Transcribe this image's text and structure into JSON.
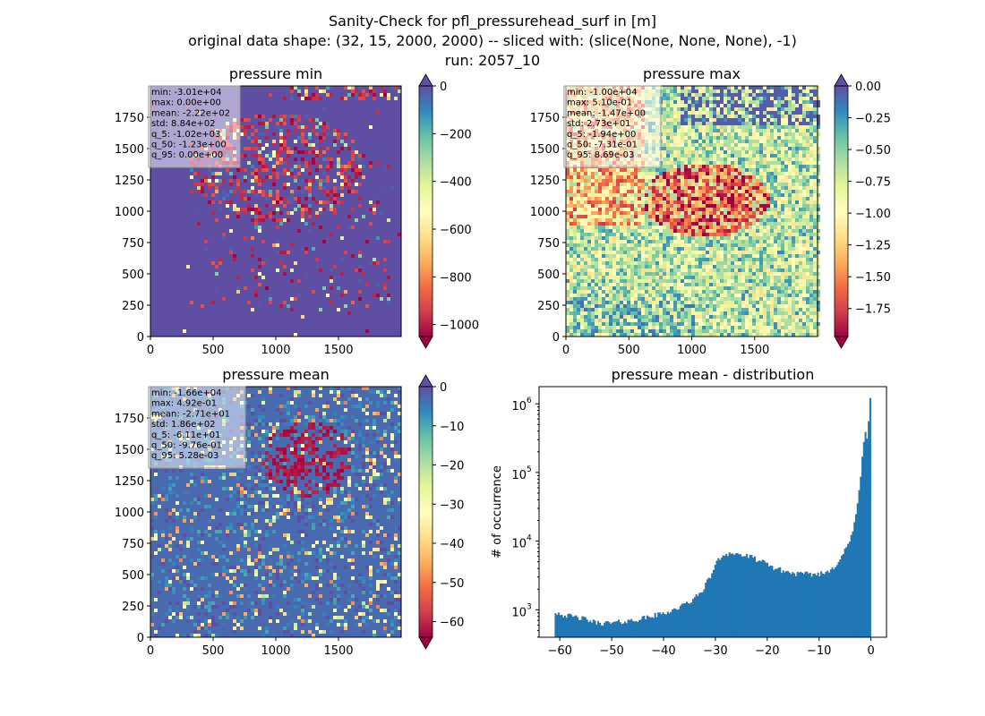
{
  "figure": {
    "title_lines": [
      "Sanity-Check for pfl_pressurehead_surf in [m]",
      "original data shape: (32, 15, 2000, 2000) -- sliced with: (slice(None, None, None), -1)",
      "run: 2057_10"
    ]
  },
  "colors": {
    "cmap": [
      "#9e0142",
      "#d53e4f",
      "#f46d43",
      "#fdae61",
      "#fee08b",
      "#ffffbf",
      "#e6f598",
      "#abdda4",
      "#66c2a5",
      "#3288bd",
      "#5e4fa2"
    ],
    "hist_bar": "#1f77b4",
    "stats_box_bg": "#ffffff",
    "stats_box_border": "#999999"
  },
  "chart_data": [
    {
      "type": "heatmap",
      "title": "pressure min",
      "xlim": [
        0,
        2000
      ],
      "ylim": [
        0,
        2000
      ],
      "xticks": [
        "0",
        "500",
        "1000",
        "1500"
      ],
      "yticks": [
        "0",
        "250",
        "500",
        "750",
        "1000",
        "1250",
        "1500",
        "1750"
      ],
      "colorbar": {
        "vmin": -1050,
        "vmax": 0,
        "ticks": [
          "0",
          "−200",
          "−400",
          "−600",
          "−800",
          "−1000"
        ],
        "tick_values": [
          0,
          -200,
          -400,
          -600,
          -800,
          -1000
        ]
      },
      "stats": [
        "min: -3.01e+04",
        "max: 0.00e+00",
        "mean: -2.22e+02",
        "std: 8.84e+02",
        "q_5: -1.02e+03",
        "q_50: -1.23e+00",
        "q_95: 0.00e+00"
      ],
      "dominant_value": 0
    },
    {
      "type": "heatmap",
      "title": "pressure max",
      "xlim": [
        0,
        2000
      ],
      "ylim": [
        0,
        2000
      ],
      "xticks": [
        "0",
        "500",
        "1000",
        "1500"
      ],
      "yticks": [
        "0",
        "250",
        "500",
        "750",
        "1000",
        "1250",
        "1500",
        "1750"
      ],
      "colorbar": {
        "vmin": -1.97,
        "vmax": 0,
        "ticks": [
          "0.00",
          "−0.25",
          "−0.50",
          "−0.75",
          "−1.00",
          "−1.25",
          "−1.50",
          "−1.75"
        ],
        "tick_values": [
          0,
          -0.25,
          -0.5,
          -0.75,
          -1.0,
          -1.25,
          -1.5,
          -1.75
        ]
      },
      "stats": [
        "min: -1.00e+04",
        "max: 5.10e-01",
        "mean: -1.47e+00",
        "std: 2.73e+01",
        "q_5: -1.94e+00",
        "q_50: -7.31e-01",
        "q_95: 8.69e-03"
      ],
      "dominant_value": -0.6
    },
    {
      "type": "heatmap",
      "title": "pressure mean",
      "xlim": [
        0,
        2000
      ],
      "ylim": [
        0,
        2000
      ],
      "xticks": [
        "0",
        "500",
        "1000",
        "1500"
      ],
      "yticks": [
        "0",
        "250",
        "500",
        "750",
        "1000",
        "1250",
        "1500",
        "1750"
      ],
      "colorbar": {
        "vmin": -64,
        "vmax": 0,
        "ticks": [
          "0",
          "−10",
          "−20",
          "−30",
          "−40",
          "−50",
          "−60"
        ],
        "tick_values": [
          0,
          -10,
          -20,
          -30,
          -40,
          -50,
          -60
        ]
      },
      "stats": [
        "min: -1.66e+04",
        "max: 4.92e-01",
        "mean: -2.71e+01",
        "std: 1.86e+02",
        "q_5: -6.11e+01",
        "q_50: -9.76e-01",
        "q_95: 5.28e-03"
      ],
      "dominant_value": -3
    },
    {
      "type": "bar",
      "title": "pressure mean - distribution",
      "ylabel": "# of occurrence",
      "xlim": [
        -64,
        3
      ],
      "ylim_log10": [
        2.6,
        6.25
      ],
      "yscale": "log",
      "xticks": [
        "−60",
        "−50",
        "−40",
        "−30",
        "−20",
        "−10",
        "0"
      ],
      "xtick_values": [
        -60,
        -50,
        -40,
        -30,
        -20,
        -10,
        0
      ],
      "yticks": [
        "10",
        "10",
        "10",
        "10"
      ],
      "yticks_exp": [
        "3",
        "4",
        "5",
        "6"
      ],
      "ytick_log_values": [
        3,
        4,
        5,
        6
      ],
      "bins": {
        "start": -61,
        "end": 0
      },
      "curve_knots": [
        [
          -61,
          940
        ],
        [
          -59,
          830
        ],
        [
          -56,
          760
        ],
        [
          -53,
          650
        ],
        [
          -50,
          640
        ],
        [
          -46,
          700
        ],
        [
          -43,
          780
        ],
        [
          -40,
          890
        ],
        [
          -37,
          1080
        ],
        [
          -35,
          1300
        ],
        [
          -33,
          1700
        ],
        [
          -31,
          3000
        ],
        [
          -30,
          4600
        ],
        [
          -29,
          5800
        ],
        [
          -28,
          6600
        ],
        [
          -27,
          6700
        ],
        [
          -26,
          6500
        ],
        [
          -25,
          6300
        ],
        [
          -23,
          5800
        ],
        [
          -21,
          5000
        ],
        [
          -19,
          4200
        ],
        [
          -17,
          3700
        ],
        [
          -15,
          3400
        ],
        [
          -13,
          3300
        ],
        [
          -11,
          3300
        ],
        [
          -9,
          3400
        ],
        [
          -7,
          4300
        ],
        [
          -5,
          7200
        ],
        [
          -4,
          10500
        ],
        [
          -3,
          20000
        ],
        [
          -2,
          80000
        ],
        [
          -1.5,
          250000
        ],
        [
          -1,
          450000
        ],
        [
          -0.7,
          300000
        ],
        [
          -0.2,
          1250000
        ],
        [
          0,
          1250000
        ]
      ]
    }
  ]
}
